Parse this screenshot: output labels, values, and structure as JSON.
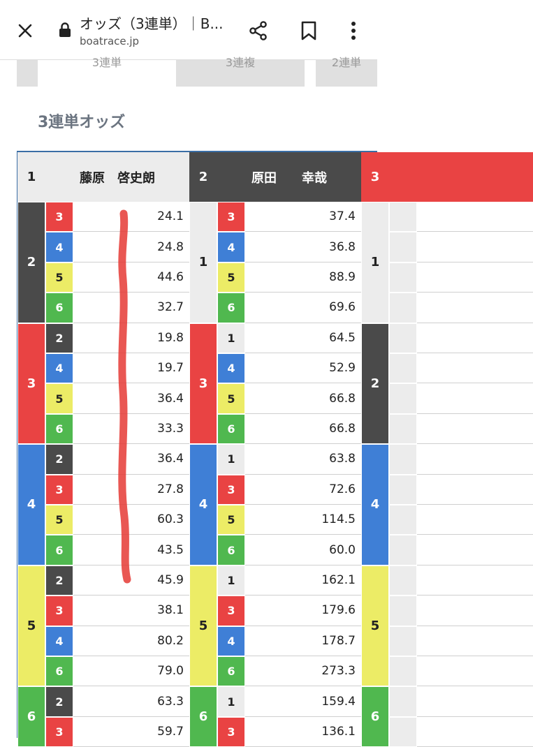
{
  "browser": {
    "title": "オッズ（3連単）｜B...",
    "url": "boatrace.jp"
  },
  "tabs": [
    {
      "label": "3連単"
    },
    {
      "label": "3連複"
    },
    {
      "label": "2連単"
    }
  ],
  "section_title": "3連単オッズ",
  "colors": {
    "1": "#ececec",
    "2": "#4a4a4a",
    "3": "#e94343",
    "4": "#3f7fd6",
    "5": "#ecec66",
    "6": "#50b84f",
    "border": "#3a6ea5",
    "scribble": "#e53935"
  },
  "columns": [
    {
      "first": "1",
      "racer": "藤原　啓史朗",
      "groups": [
        {
          "second": "2",
          "rows": [
            {
              "third": "3",
              "odds": "24.1"
            },
            {
              "third": "4",
              "odds": "24.8"
            },
            {
              "third": "5",
              "odds": "44.6"
            },
            {
              "third": "6",
              "odds": "32.7"
            }
          ]
        },
        {
          "second": "3",
          "rows": [
            {
              "third": "2",
              "odds": "19.8"
            },
            {
              "third": "4",
              "odds": "19.7"
            },
            {
              "third": "5",
              "odds": "36.4"
            },
            {
              "third": "6",
              "odds": "33.3"
            }
          ]
        },
        {
          "second": "4",
          "rows": [
            {
              "third": "2",
              "odds": "36.4"
            },
            {
              "third": "3",
              "odds": "27.8"
            },
            {
              "third": "5",
              "odds": "60.3"
            },
            {
              "third": "6",
              "odds": "43.5"
            }
          ]
        },
        {
          "second": "5",
          "rows": [
            {
              "third": "2",
              "odds": "45.9"
            },
            {
              "third": "3",
              "odds": "38.1"
            },
            {
              "third": "4",
              "odds": "80.2"
            },
            {
              "third": "6",
              "odds": "79.0"
            }
          ]
        },
        {
          "second": "6",
          "rows": [
            {
              "third": "2",
              "odds": "63.3"
            },
            {
              "third": "3",
              "odds": "59.7"
            }
          ]
        }
      ]
    },
    {
      "first": "2",
      "racer": "原田　　幸哉",
      "groups": [
        {
          "second": "1",
          "rows": [
            {
              "third": "3",
              "odds": "37.4"
            },
            {
              "third": "4",
              "odds": "36.8"
            },
            {
              "third": "5",
              "odds": "88.9"
            },
            {
              "third": "6",
              "odds": "69.6"
            }
          ]
        },
        {
          "second": "3",
          "rows": [
            {
              "third": "1",
              "odds": "64.5"
            },
            {
              "third": "4",
              "odds": "52.9"
            },
            {
              "third": "5",
              "odds": "66.8"
            },
            {
              "third": "6",
              "odds": "66.8"
            }
          ]
        },
        {
          "second": "4",
          "rows": [
            {
              "third": "1",
              "odds": "63.8"
            },
            {
              "third": "3",
              "odds": "72.6"
            },
            {
              "third": "5",
              "odds": "114.5"
            },
            {
              "third": "6",
              "odds": "60.0"
            }
          ]
        },
        {
          "second": "5",
          "rows": [
            {
              "third": "1",
              "odds": "162.1"
            },
            {
              "third": "3",
              "odds": "179.6"
            },
            {
              "third": "4",
              "odds": "178.7"
            },
            {
              "third": "6",
              "odds": "273.3"
            }
          ]
        },
        {
          "second": "6",
          "rows": [
            {
              "third": "1",
              "odds": "159.4"
            },
            {
              "third": "3",
              "odds": "136.1"
            }
          ]
        }
      ]
    },
    {
      "first": "3",
      "racer": "",
      "groups": [
        {
          "second": "1",
          "rows": [
            {
              "third": "",
              "odds": ""
            },
            {
              "third": "",
              "odds": ""
            },
            {
              "third": "",
              "odds": ""
            },
            {
              "third": "",
              "odds": ""
            }
          ]
        },
        {
          "second": "2",
          "rows": [
            {
              "third": "",
              "odds": ""
            },
            {
              "third": "",
              "odds": ""
            },
            {
              "third": "",
              "odds": ""
            },
            {
              "third": "",
              "odds": ""
            }
          ]
        },
        {
          "second": "4",
          "rows": [
            {
              "third": "",
              "odds": ""
            },
            {
              "third": "",
              "odds": ""
            },
            {
              "third": "",
              "odds": ""
            },
            {
              "third": "",
              "odds": ""
            }
          ]
        },
        {
          "second": "5",
          "rows": [
            {
              "third": "",
              "odds": ""
            },
            {
              "third": "",
              "odds": ""
            },
            {
              "third": "",
              "odds": ""
            },
            {
              "third": "",
              "odds": ""
            }
          ]
        },
        {
          "second": "6",
          "rows": [
            {
              "third": "",
              "odds": ""
            },
            {
              "third": "",
              "odds": ""
            }
          ]
        }
      ]
    }
  ]
}
